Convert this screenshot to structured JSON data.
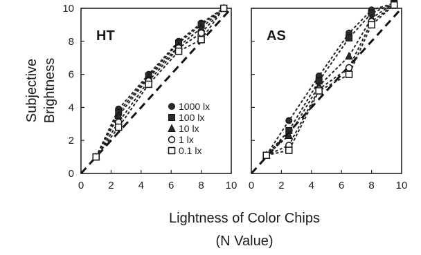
{
  "chart_data": {
    "type": "line",
    "ylabel_lines": [
      "Subjective",
      "Brightness"
    ],
    "xlabel_lines": [
      "Lightness of Color Chips",
      "(N Value)"
    ],
    "xlim": [
      0,
      10
    ],
    "ylim": [
      0,
      10
    ],
    "x_ticks": [
      "0",
      "2",
      "4",
      "6",
      "8",
      "10"
    ],
    "y_ticks": [
      "0",
      "2",
      "4",
      "6",
      "8",
      "10"
    ],
    "legend": [
      {
        "label": "1000 lx",
        "marker": "circle-filled"
      },
      {
        "label": "100 lx",
        "marker": "square-filled"
      },
      {
        "label": "10 lx",
        "marker": "triangle-filled"
      },
      {
        "label": "1 lx",
        "marker": "circle-open"
      },
      {
        "label": "0.1 lx",
        "marker": "square-open"
      }
    ],
    "x": [
      1,
      2.5,
      4.5,
      6.5,
      8,
      9.5
    ],
    "panels": [
      {
        "label": "HT",
        "series": [
          {
            "name": "1000 lx",
            "marker": "circle-filled",
            "values": [
              1,
              3.9,
              6.0,
              8.0,
              9.1,
              10
            ]
          },
          {
            "name": "100 lx",
            "marker": "square-filled",
            "values": [
              1,
              3.7,
              5.9,
              7.9,
              9.0,
              10
            ]
          },
          {
            "name": "10 lx",
            "marker": "triangle-filled",
            "values": [
              1,
              3.5,
              5.8,
              7.7,
              8.8,
              10
            ]
          },
          {
            "name": "1 lx",
            "marker": "circle-open",
            "values": [
              1,
              3.1,
              5.6,
              7.6,
              8.5,
              10
            ]
          },
          {
            "name": "0.1 lx",
            "marker": "square-open",
            "values": [
              1,
              2.8,
              5.4,
              7.4,
              8.1,
              10
            ]
          }
        ],
        "reference_line": [
          [
            0,
            0
          ],
          [
            10,
            10
          ]
        ]
      },
      {
        "label": "AS",
        "series": [
          {
            "name": "1000 lx",
            "marker": "circle-filled",
            "values": [
              1.1,
              3.2,
              5.9,
              8.5,
              9.9,
              10.3
            ]
          },
          {
            "name": "100 lx",
            "marker": "square-filled",
            "values": [
              1.1,
              2.6,
              5.6,
              8.2,
              9.7,
              10.3
            ]
          },
          {
            "name": "10 lx",
            "marker": "triangle-filled",
            "values": [
              1.1,
              2.3,
              5.3,
              7.1,
              9.4,
              10.3
            ]
          },
          {
            "name": "1 lx",
            "marker": "circle-open",
            "values": [
              1.1,
              1.7,
              5.1,
              6.4,
              9.2,
              10.2
            ]
          },
          {
            "name": "0.1 lx",
            "marker": "square-open",
            "values": [
              1.1,
              1.4,
              5.0,
              6.0,
              9.0,
              10.2
            ]
          }
        ],
        "reference_line": [
          [
            0,
            0
          ],
          [
            10,
            10
          ]
        ]
      }
    ],
    "grid": false,
    "legend_position": "lower-right of left panel"
  }
}
